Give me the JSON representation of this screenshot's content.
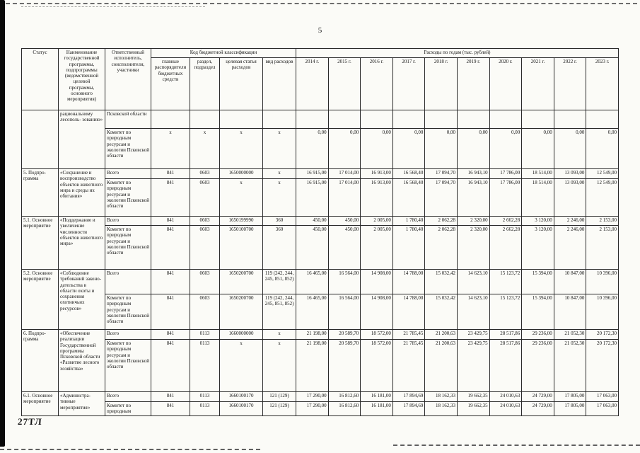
{
  "page": {
    "number": "5",
    "stamp": "27ТЛ"
  },
  "table": {
    "header": {
      "status": "Статус",
      "program_name": "Наименование государственной программы, подпрограммы (ведомственной целевой программы, основного мероприятия)",
      "executor": "Ответственный исполнитель, соисполнители, участники",
      "budget_code_group": "Код бюджетной классификации",
      "budget_code_columns": [
        "главные распорядители бюджетных средств",
        "раздел, подраздел",
        "целевая статья расходов",
        "вид расходов"
      ],
      "expenses_group": "Расходы по годам (тыс. рублей)",
      "years": [
        "2014 г.",
        "2015 г.",
        "2016 г.",
        "2017 г.",
        "2018 г.",
        "2019 г.",
        "2020 г.",
        "2021 г.",
        "2022 г.",
        "2023 г."
      ]
    },
    "groups": [
      {
        "status": "",
        "name": "рациональному лесополь- зованию»",
        "rows": [
          {
            "executor": "Псковской области",
            "codes": [
              "",
              "",
              "",
              ""
            ],
            "values": [
              "",
              "",
              "",
              "",
              "",
              "",
              "",
              "",
              "",
              ""
            ]
          },
          {
            "executor": "Комитет по природным ресурсам и экологии Псковской области",
            "codes": [
              "х",
              "х",
              "х",
              "х"
            ],
            "values": [
              "0,00",
              "0,00",
              "0,00",
              "0,00",
              "0,00",
              "0,00",
              "0,00",
              "0,00",
              "0,00",
              "0,00"
            ]
          }
        ]
      },
      {
        "status": "5. Подпро- грамма",
        "name": "«Сохранение и воспроизводство объектов животного мира и среды их обитания»",
        "rows": [
          {
            "executor": "Всего",
            "codes": [
              "841",
              "0603",
              "1650000000",
              "х"
            ],
            "values": [
              "16 915,00",
              "17 014,00",
              "16 913,00",
              "16 568,40",
              "17 094,70",
              "16 943,10",
              "17 786,00",
              "18 514,00",
              "13 093,00",
              "12 549,00"
            ]
          },
          {
            "executor": "Комитет по природным ресурсам и экологии Псковской области",
            "codes": [
              "841",
              "0603",
              "х",
              "х"
            ],
            "values": [
              "16 915,00",
              "17 014,00",
              "16 913,00",
              "16 568,40",
              "17 094,70",
              "16 943,10",
              "17 786,00",
              "18 514,00",
              "13 093,00",
              "12 549,00"
            ]
          }
        ]
      },
      {
        "status": "5.1. Основное мероприятие",
        "name": "«Поддержание и увеличение численности объектов животного мира»",
        "rows": [
          {
            "executor": "Всего",
            "codes": [
              "841",
              "0603",
              "1650199990",
              "360"
            ],
            "values": [
              "450,00",
              "450,00",
              "2 005,00",
              "1 780,40",
              "2 062,28",
              "2 320,00",
              "2 662,28",
              "3 120,00",
              "2 246,00",
              "2 153,00"
            ]
          },
          {
            "executor": "Комитет по природным ресурсам и экологии Псковской области",
            "codes": [
              "841",
              "0603",
              "1650100700",
              "360"
            ],
            "values": [
              "450,00",
              "450,00",
              "2 005,00",
              "1 780,40",
              "2 062,28",
              "2 320,00",
              "2 662,28",
              "3 120,00",
              "2 246,00",
              "2 153,00"
            ]
          }
        ]
      },
      {
        "status": "5.2. Основное мероприятие",
        "name": "«Соблюдение требований законо- дательства в области охоты и сохранения охотничьих ресурсов»",
        "rows": [
          {
            "executor": "Всего",
            "codes": [
              "841",
              "0603",
              "1650200700",
              "119 (242, 244, 245, 851, 852)"
            ],
            "values": [
              "16 465,00",
              "16 564,00",
              "14 908,00",
              "14 788,00",
              "15 032,42",
              "14 623,10",
              "15 123,72",
              "15 394,00",
              "10 847,00",
              "10 396,00"
            ]
          },
          {
            "executor": "Комитет по природным ресурсам и экологии Псковской области",
            "codes": [
              "841",
              "0603",
              "1650200700",
              "119 (242, 244, 245, 851, 852)"
            ],
            "values": [
              "16 465,00",
              "16 564,00",
              "14 908,00",
              "14 788,00",
              "15 032,42",
              "14 623,10",
              "15 123,72",
              "15 394,00",
              "10 847,00",
              "10 396,00"
            ]
          }
        ]
      },
      {
        "status": "6. Подпро- грамма",
        "name": "«Обеспечение реализации Государственной программы Псковской области «Развитие лесного хозяйства»",
        "rows": [
          {
            "executor": "Всего",
            "codes": [
              "841",
              "0113",
              "1660000000",
              "х"
            ],
            "values": [
              "21 198,00",
              "20 589,70",
              "18 572,00",
              "21 785,45",
              "21 200,63",
              "23 429,75",
              "28 517,86",
              "29 236,00",
              "21 052,30",
              "20 172,30"
            ]
          },
          {
            "executor": "Комитет по природным ресурсам и экологии Псковской области",
            "codes": [
              "841",
              "0113",
              "х",
              "х"
            ],
            "values": [
              "21 198,00",
              "20 589,70",
              "18 572,00",
              "21 785,45",
              "21 200,63",
              "23 429,75",
              "28 517,86",
              "29 236,00",
              "21 052,30",
              "20 172,30"
            ]
          }
        ]
      },
      {
        "status": "6.1. Основное мероприятие",
        "name": "«Администра- тивные мероприятия»",
        "rows": [
          {
            "executor": "Всего",
            "codes": [
              "841",
              "0113",
              "1660100170",
              "121 (129)"
            ],
            "values": [
              "17 290,00",
              "16 812,60",
              "16 181,00",
              "17 894,69",
              "18 162,33",
              "19 662,35",
              "24 010,63",
              "24 729,00",
              "17 805,00",
              "17 063,00"
            ]
          },
          {
            "executor": "Комитет по природным",
            "codes": [
              "841",
              "0113",
              "1660100170",
              "121 (129)"
            ],
            "values": [
              "17 290,00",
              "16 812,60",
              "16 181,00",
              "17 894,69",
              "18 162,33",
              "19 662,35",
              "24 010,63",
              "24 729,00",
              "17 805,00",
              "17 063,00"
            ]
          }
        ]
      }
    ]
  }
}
